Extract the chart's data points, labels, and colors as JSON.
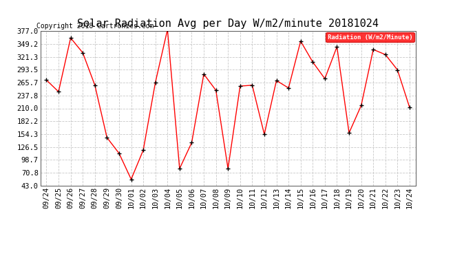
{
  "title": "Solar Radiation Avg per Day W/m2/minute 20181024",
  "copyright": "Copyright 2018 Cartronics.com",
  "legend_label": "Radiation (W/m2/Minute)",
  "dates": [
    "09/24",
    "09/25",
    "09/26",
    "09/27",
    "09/28",
    "09/29",
    "09/30",
    "10/01",
    "10/02",
    "10/03",
    "10/04",
    "10/05",
    "10/06",
    "10/07",
    "10/08",
    "10/09",
    "10/10",
    "10/11",
    "10/12",
    "10/13",
    "10/14",
    "10/15",
    "10/16",
    "10/17",
    "10/18",
    "10/19",
    "10/20",
    "10/21",
    "10/22",
    "10/23",
    "10/24"
  ],
  "values": [
    271.0,
    246.0,
    362.0,
    330.0,
    260.0,
    147.0,
    113.0,
    57.0,
    120.0,
    266.0,
    380.0,
    80.0,
    136.0,
    284.0,
    249.0,
    80.0,
    258.0,
    260.0,
    154.0,
    270.0,
    254.0,
    355.0,
    310.0,
    274.0,
    343.0,
    157.0,
    216.0,
    337.0,
    326.0,
    293.0,
    212.0
  ],
  "ytick_vals": [
    43.0,
    70.8,
    98.7,
    126.5,
    154.3,
    182.2,
    210.0,
    237.8,
    265.7,
    293.5,
    321.3,
    349.2,
    377.0
  ],
  "ytick_labels": [
    "43.0",
    "70.8",
    "98.7",
    "126.5",
    "154.3",
    "182.2",
    "210.0",
    "237.8",
    "265.7",
    "293.5",
    "321.3",
    "349.2",
    "377.0"
  ],
  "ymin": 43.0,
  "ymax": 377.0,
  "line_color": "red",
  "marker_color": "black",
  "bg_color": "#ffffff",
  "grid_color": "#c8c8c8",
  "legend_bg": "red",
  "legend_text_color": "white",
  "title_fontsize": 11,
  "copyright_fontsize": 7,
  "tick_fontsize": 7.5
}
